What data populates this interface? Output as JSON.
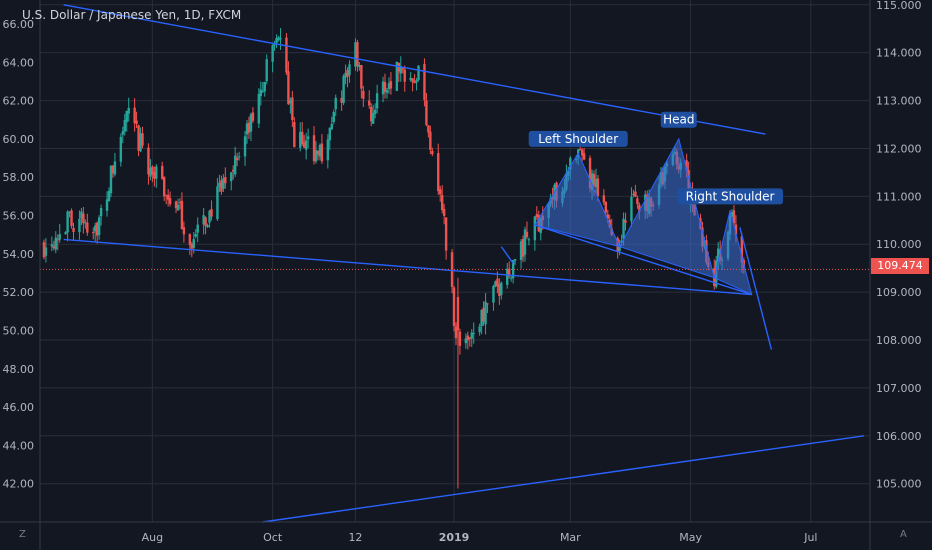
{
  "header": {
    "title": "U.S. Dollar / Japanese Yen, 1D, FXCM"
  },
  "corner": {
    "left_label": "Z",
    "right_label": "A"
  },
  "colors": {
    "background": "#131722",
    "grid": "#2a2e39",
    "axis_text": "#b2b5be",
    "candle_up": "#26a69a",
    "candle_down": "#ef5350",
    "trendline": "#2962ff",
    "pattern_fill": "#3d6fd6",
    "label_bg": "#1e4fa0",
    "last_price": "#ef5350"
  },
  "chart_data": {
    "type": "candlestick",
    "title": "U.S. Dollar / Japanese Yen, 1D, FXCM",
    "last_price": 109.474,
    "last_price_label": "109.474",
    "left_axis": {
      "ticks": [
        "66.00",
        "64.00",
        "62.00",
        "60.00",
        "58.00",
        "56.00",
        "54.00",
        "52.00",
        "50.00",
        "48.00",
        "46.00",
        "44.00",
        "42.00"
      ],
      "values": [
        66,
        64,
        62,
        60,
        58,
        56,
        54,
        52,
        50,
        48,
        46,
        44,
        42
      ]
    },
    "right_axis": {
      "ticks": [
        "115.000",
        "114.000",
        "113.000",
        "112.000",
        "111.000",
        "110.000",
        "109.000",
        "108.000",
        "107.000",
        "106.000",
        "105.000"
      ],
      "values": [
        115,
        114,
        113,
        112,
        111,
        110,
        109,
        108,
        107,
        106,
        105
      ],
      "ylim": [
        104.2,
        115.1
      ]
    },
    "x_axis": {
      "ticks": [
        "Aug",
        "Oct",
        "12",
        "2019",
        "Mar",
        "May",
        "Jul"
      ],
      "dates": [
        "2018-08-01",
        "2018-10-01",
        "2018-11-12",
        "2019-01-01",
        "2019-03-01",
        "2019-05-01",
        "2019-07-01"
      ],
      "xlim": [
        "2018-06-05",
        "2019-07-31"
      ]
    },
    "anchors": [
      {
        "date": "2018-06-07",
        "price": 110.0
      },
      {
        "date": "2018-06-20",
        "price": 110.5
      },
      {
        "date": "2018-07-05",
        "price": 110.4
      },
      {
        "date": "2018-07-19",
        "price": 112.7
      },
      {
        "date": "2018-08-01",
        "price": 111.5
      },
      {
        "date": "2018-08-13",
        "price": 110.8
      },
      {
        "date": "2018-08-21",
        "price": 110.0
      },
      {
        "date": "2018-09-05",
        "price": 111.1
      },
      {
        "date": "2018-09-21",
        "price": 112.6
      },
      {
        "date": "2018-10-04",
        "price": 114.5
      },
      {
        "date": "2018-10-12",
        "price": 112.2
      },
      {
        "date": "2018-10-26",
        "price": 111.9
      },
      {
        "date": "2018-11-12",
        "price": 114.1
      },
      {
        "date": "2018-11-19",
        "price": 112.7
      },
      {
        "date": "2018-12-03",
        "price": 113.7
      },
      {
        "date": "2018-12-14",
        "price": 113.6
      },
      {
        "date": "2018-12-26",
        "price": 110.8
      },
      {
        "date": "2019-01-03",
        "price": 107.8
      },
      {
        "date": "2019-01-15",
        "price": 108.5
      },
      {
        "date": "2019-02-01",
        "price": 109.7
      },
      {
        "date": "2019-02-11",
        "price": 110.4
      },
      {
        "date": "2019-03-05",
        "price": 111.8
      },
      {
        "date": "2019-03-13",
        "price": 111.2
      },
      {
        "date": "2019-03-25",
        "price": 110.0
      },
      {
        "date": "2019-04-01",
        "price": 110.9
      },
      {
        "date": "2019-04-10",
        "price": 110.9
      },
      {
        "date": "2019-04-24",
        "price": 111.9
      },
      {
        "date": "2019-04-29",
        "price": 111.3
      },
      {
        "date": "2019-05-06",
        "price": 110.1
      },
      {
        "date": "2019-05-13",
        "price": 109.4
      },
      {
        "date": "2019-05-22",
        "price": 110.5
      },
      {
        "date": "2019-05-28",
        "price": 109.5
      }
    ],
    "special_candles": [
      {
        "date": "2019-01-03",
        "high": 109.3,
        "low": 104.9
      }
    ],
    "trendlines": [
      {
        "from": {
          "date": "2018-06-17",
          "price": 115.0
        },
        "to": {
          "date": "2019-06-08",
          "price": 112.3
        }
      },
      {
        "from": {
          "date": "2018-06-17",
          "price": 110.1
        },
        "to": {
          "date": "2019-06-01",
          "price": 108.95
        }
      },
      {
        "from": {
          "date": "2018-09-26",
          "price": 104.2
        },
        "to": {
          "date": "2019-07-28",
          "price": 106.0
        }
      },
      {
        "from": {
          "date": "2019-02-11",
          "price": 110.4
        },
        "to": {
          "date": "2019-06-01",
          "price": 108.95
        }
      },
      {
        "from": {
          "date": "2019-01-25",
          "price": 109.95
        },
        "to": {
          "date": "2019-01-31",
          "price": 109.6
        }
      },
      {
        "from": {
          "date": "2019-05-26",
          "price": 110.35
        },
        "to": {
          "date": "2019-06-11",
          "price": 107.8
        }
      }
    ],
    "pattern": [
      {
        "points": [
          {
            "date": "2019-02-11",
            "price": 110.4
          },
          {
            "date": "2019-03-05",
            "price": 111.9
          },
          {
            "date": "2019-03-26",
            "price": 109.95
          }
        ]
      },
      {
        "points": [
          {
            "date": "2019-03-26",
            "price": 109.95
          },
          {
            "date": "2019-04-25",
            "price": 112.2
          },
          {
            "date": "2019-05-13",
            "price": 109.3
          }
        ]
      },
      {
        "points": [
          {
            "date": "2019-05-13",
            "price": 109.3
          },
          {
            "date": "2019-05-21",
            "price": 110.7
          },
          {
            "date": "2019-06-01",
            "price": 108.95
          }
        ]
      }
    ],
    "annotations": [
      {
        "text": "Left Shoulder",
        "date": "2019-03-05",
        "price": 112.2
      },
      {
        "text": "Head",
        "date": "2019-04-25",
        "price": 112.6
      },
      {
        "text": "Right Shoulder",
        "date": "2019-05-21",
        "price": 111.0
      }
    ],
    "grid": true
  }
}
